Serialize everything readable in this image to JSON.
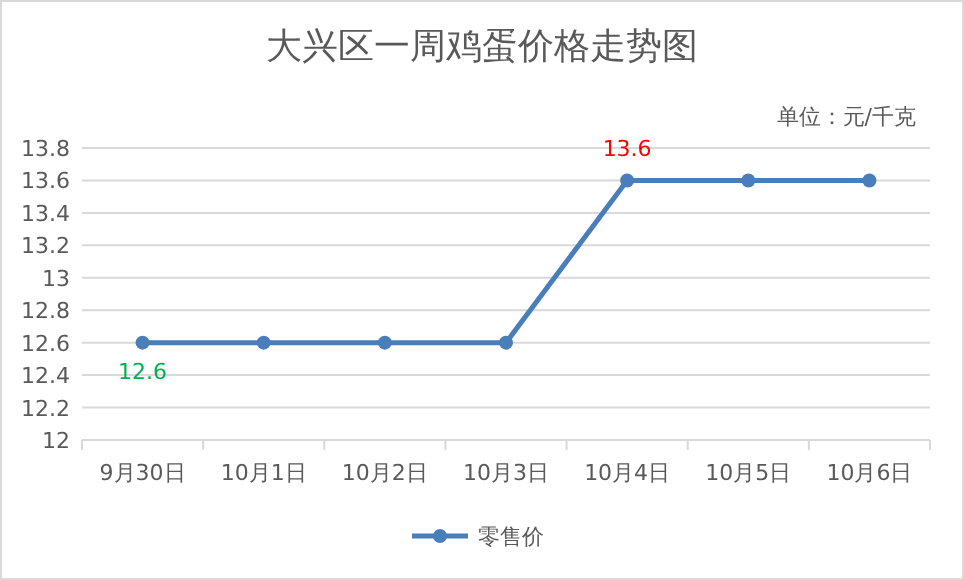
{
  "chart_data": {
    "type": "line",
    "title": "大兴区一周鸡蛋价格走势图",
    "annotations": [
      "单位：元/千克"
    ],
    "categories": [
      "9月30日",
      "10月1日",
      "10月2日",
      "10月3日",
      "10月4日",
      "10月5日",
      "10月6日"
    ],
    "series": [
      {
        "name": "零售价",
        "color": "#4a7ebb",
        "values": [
          12.6,
          12.6,
          12.6,
          12.6,
          13.6,
          13.6,
          13.6
        ],
        "value_labels": [
          "12.6",
          null,
          null,
          null,
          "13.6",
          null,
          null
        ]
      }
    ],
    "ylim": [
      12,
      13.8
    ],
    "yticks": [
      12,
      12.2,
      12.4,
      12.6,
      12.8,
      13,
      13.2,
      13.4,
      13.6,
      13.8
    ],
    "grid": "y",
    "legend": "bottom",
    "marker": "circle",
    "line_style": "solid"
  }
}
